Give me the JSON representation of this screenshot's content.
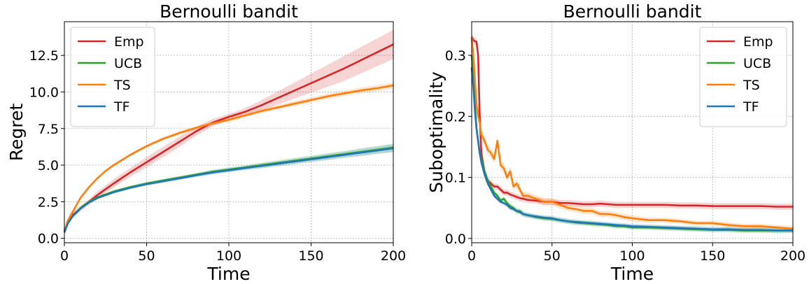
{
  "chart_data": [
    {
      "type": "line",
      "title": "Bernoulli bandit",
      "xlabel": "Time",
      "ylabel": "Regret",
      "xlim": [
        0,
        200
      ],
      "ylim": [
        -0.3,
        14.8
      ],
      "xticks": [
        0,
        50,
        100,
        150,
        200
      ],
      "xtick_labels": [
        "0",
        "50",
        "100",
        "150",
        "200"
      ],
      "yticks": [
        0,
        2.5,
        5,
        7.5,
        10,
        12.5
      ],
      "ytick_labels": [
        "0.0",
        "2.5",
        "5.0",
        "7.5",
        "10.0",
        "12.5"
      ],
      "grid": true,
      "legend": "top-left",
      "x": [
        0,
        2,
        5,
        10,
        15,
        20,
        25,
        30,
        40,
        50,
        60,
        70,
        80,
        90,
        100,
        110,
        120,
        130,
        140,
        150,
        160,
        170,
        180,
        190,
        200
      ],
      "series": [
        {
          "name": "Emp",
          "color": "#d62728",
          "values": [
            0.5,
            1.1,
            1.6,
            2.05,
            2.5,
            2.95,
            3.35,
            3.75,
            4.5,
            5.2,
            5.9,
            6.6,
            7.3,
            7.9,
            8.3,
            8.65,
            9.1,
            9.6,
            10.1,
            10.6,
            11.1,
            11.6,
            12.15,
            12.7,
            13.25
          ],
          "band": [
            0.15,
            0.15,
            0.2,
            0.2,
            0.2,
            0.25,
            0.25,
            0.3,
            0.3,
            0.35,
            0.35,
            0.35,
            0.3,
            0.25,
            0.2,
            0.25,
            0.35,
            0.45,
            0.55,
            0.65,
            0.75,
            0.85,
            0.9,
            0.95,
            1.0
          ]
        },
        {
          "name": "UCB",
          "color": "#2ca02c",
          "values": [
            0.4,
            1.0,
            1.5,
            2.1,
            2.5,
            2.8,
            3.0,
            3.2,
            3.5,
            3.75,
            3.95,
            4.15,
            4.35,
            4.55,
            4.7,
            4.85,
            5.0,
            5.15,
            5.3,
            5.45,
            5.6,
            5.75,
            5.9,
            6.05,
            6.2
          ],
          "band": [
            0.05,
            0.05,
            0.05,
            0.05,
            0.08,
            0.08,
            0.08,
            0.1,
            0.1,
            0.1,
            0.12,
            0.12,
            0.12,
            0.15,
            0.15,
            0.15,
            0.18,
            0.18,
            0.2,
            0.2,
            0.22,
            0.22,
            0.25,
            0.25,
            0.28
          ]
        },
        {
          "name": "TS",
          "color": "#ff7f0e",
          "values": [
            0.4,
            1.2,
            1.8,
            2.8,
            3.5,
            4.1,
            4.6,
            5.0,
            5.7,
            6.3,
            6.8,
            7.2,
            7.55,
            7.85,
            8.1,
            8.4,
            8.7,
            8.95,
            9.2,
            9.45,
            9.7,
            9.9,
            10.1,
            10.25,
            10.45
          ],
          "band": [
            0.05,
            0.05,
            0.05,
            0.08,
            0.08,
            0.08,
            0.08,
            0.1,
            0.1,
            0.1,
            0.12,
            0.12,
            0.12,
            0.12,
            0.15,
            0.15,
            0.15,
            0.15,
            0.18,
            0.18,
            0.18,
            0.18,
            0.2,
            0.2,
            0.2
          ]
        },
        {
          "name": "TF",
          "color": "#1f77b4",
          "values": [
            0.4,
            1.0,
            1.5,
            2.05,
            2.45,
            2.75,
            2.95,
            3.15,
            3.45,
            3.7,
            3.9,
            4.1,
            4.3,
            4.5,
            4.65,
            4.8,
            4.95,
            5.1,
            5.25,
            5.4,
            5.55,
            5.7,
            5.85,
            6.0,
            6.15
          ],
          "band": [
            0.05,
            0.05,
            0.05,
            0.05,
            0.08,
            0.08,
            0.08,
            0.1,
            0.1,
            0.1,
            0.12,
            0.12,
            0.12,
            0.15,
            0.15,
            0.15,
            0.18,
            0.18,
            0.2,
            0.2,
            0.22,
            0.22,
            0.25,
            0.25,
            0.28
          ]
        }
      ]
    },
    {
      "type": "line",
      "title": "Bernoulli bandit",
      "xlabel": "Time",
      "ylabel": "Suboptimality",
      "xlim": [
        0,
        200
      ],
      "ylim": [
        -0.007,
        0.355
      ],
      "xticks": [
        0,
        50,
        100,
        150,
        200
      ],
      "xtick_labels": [
        "0",
        "50",
        "100",
        "150",
        "200"
      ],
      "yticks": [
        0,
        0.1,
        0.2,
        0.3
      ],
      "ytick_labels": [
        "0.0",
        "0.1",
        "0.2",
        "0.3"
      ],
      "grid": true,
      "legend": "top-right",
      "x": [
        0,
        1,
        2,
        3,
        4,
        5,
        6,
        8,
        10,
        12,
        14,
        16,
        18,
        20,
        22,
        24,
        26,
        28,
        30,
        32,
        35,
        40,
        45,
        50,
        55,
        60,
        65,
        70,
        75,
        80,
        85,
        90,
        95,
        100,
        110,
        120,
        130,
        140,
        150,
        160,
        170,
        180,
        190,
        200
      ],
      "series": [
        {
          "name": "Emp",
          "color": "#d62728",
          "values": [
            0.33,
            0.325,
            0.323,
            0.322,
            0.3,
            0.2,
            0.14,
            0.11,
            0.095,
            0.09,
            0.085,
            0.085,
            0.08,
            0.075,
            0.075,
            0.072,
            0.07,
            0.068,
            0.066,
            0.065,
            0.063,
            0.062,
            0.06,
            0.06,
            0.058,
            0.058,
            0.057,
            0.056,
            0.056,
            0.057,
            0.056,
            0.055,
            0.055,
            0.055,
            0.055,
            0.055,
            0.054,
            0.054,
            0.053,
            0.053,
            0.053,
            0.053,
            0.052,
            0.052
          ],
          "band": [
            0.006,
            0.006,
            0.006,
            0.006,
            0.006,
            0.006,
            0.006,
            0.005,
            0.005,
            0.005,
            0.005,
            0.005,
            0.005,
            0.005,
            0.005,
            0.005,
            0.005,
            0.005,
            0.005,
            0.005,
            0.005,
            0.005,
            0.005,
            0.005,
            0.005,
            0.005,
            0.005,
            0.005,
            0.005,
            0.005,
            0.005,
            0.005,
            0.005,
            0.005,
            0.005,
            0.005,
            0.005,
            0.005,
            0.005,
            0.005,
            0.005,
            0.005,
            0.005,
            0.005
          ]
        },
        {
          "name": "UCB",
          "color": "#2ca02c",
          "values": [
            0.3,
            0.27,
            0.22,
            0.18,
            0.16,
            0.14,
            0.13,
            0.11,
            0.095,
            0.085,
            0.075,
            0.07,
            0.062,
            0.065,
            0.058,
            0.053,
            0.05,
            0.045,
            0.045,
            0.04,
            0.038,
            0.035,
            0.033,
            0.032,
            0.03,
            0.028,
            0.026,
            0.025,
            0.024,
            0.023,
            0.022,
            0.02,
            0.02,
            0.018,
            0.018,
            0.017,
            0.016,
            0.015,
            0.014,
            0.014,
            0.013,
            0.013,
            0.013,
            0.013
          ],
          "band": [
            0.004,
            0.004,
            0.004,
            0.004,
            0.004,
            0.004,
            0.004,
            0.004,
            0.004,
            0.004,
            0.004,
            0.004,
            0.004,
            0.004,
            0.004,
            0.004,
            0.004,
            0.004,
            0.004,
            0.004,
            0.004,
            0.004,
            0.004,
            0.004,
            0.004,
            0.004,
            0.004,
            0.004,
            0.004,
            0.004,
            0.004,
            0.004,
            0.004,
            0.004,
            0.004,
            0.004,
            0.004,
            0.004,
            0.004,
            0.004,
            0.004,
            0.004,
            0.004,
            0.004
          ]
        },
        {
          "name": "TS",
          "color": "#ff7f0e",
          "values": [
            0.33,
            0.3,
            0.26,
            0.22,
            0.2,
            0.19,
            0.17,
            0.16,
            0.145,
            0.14,
            0.13,
            0.16,
            0.12,
            0.115,
            0.1,
            0.11,
            0.085,
            0.09,
            0.08,
            0.07,
            0.07,
            0.065,
            0.06,
            0.06,
            0.055,
            0.05,
            0.048,
            0.045,
            0.045,
            0.04,
            0.04,
            0.038,
            0.035,
            0.033,
            0.03,
            0.03,
            0.028,
            0.025,
            0.025,
            0.022,
            0.02,
            0.02,
            0.018,
            0.016
          ],
          "band": [
            0.008,
            0.008,
            0.008,
            0.008,
            0.008,
            0.008,
            0.008,
            0.008,
            0.008,
            0.008,
            0.008,
            0.008,
            0.008,
            0.008,
            0.007,
            0.007,
            0.007,
            0.007,
            0.007,
            0.006,
            0.006,
            0.006,
            0.006,
            0.006,
            0.006,
            0.005,
            0.005,
            0.005,
            0.005,
            0.005,
            0.005,
            0.005,
            0.005,
            0.005,
            0.004,
            0.004,
            0.004,
            0.004,
            0.004,
            0.004,
            0.004,
            0.004,
            0.004,
            0.004
          ]
        },
        {
          "name": "TF",
          "color": "#1f77b4",
          "values": [
            0.28,
            0.25,
            0.21,
            0.18,
            0.16,
            0.14,
            0.125,
            0.105,
            0.09,
            0.08,
            0.07,
            0.065,
            0.06,
            0.058,
            0.055,
            0.05,
            0.048,
            0.045,
            0.043,
            0.04,
            0.038,
            0.036,
            0.034,
            0.033,
            0.03,
            0.028,
            0.027,
            0.026,
            0.025,
            0.024,
            0.023,
            0.022,
            0.021,
            0.02,
            0.019,
            0.018,
            0.017,
            0.016,
            0.015,
            0.015,
            0.014,
            0.014,
            0.013,
            0.013
          ],
          "band": [
            0.004,
            0.004,
            0.004,
            0.004,
            0.004,
            0.004,
            0.004,
            0.004,
            0.004,
            0.004,
            0.004,
            0.004,
            0.004,
            0.004,
            0.004,
            0.004,
            0.004,
            0.004,
            0.004,
            0.004,
            0.004,
            0.004,
            0.004,
            0.004,
            0.004,
            0.004,
            0.004,
            0.004,
            0.004,
            0.004,
            0.004,
            0.004,
            0.004,
            0.004,
            0.004,
            0.004,
            0.004,
            0.004,
            0.004,
            0.004,
            0.004,
            0.004,
            0.004,
            0.004
          ]
        }
      ]
    }
  ]
}
